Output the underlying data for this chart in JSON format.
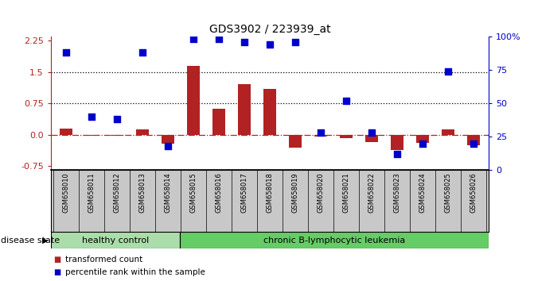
{
  "title": "GDS3902 / 223939_at",
  "samples": [
    "GSM658010",
    "GSM658011",
    "GSM658012",
    "GSM658013",
    "GSM658014",
    "GSM658015",
    "GSM658016",
    "GSM658017",
    "GSM658018",
    "GSM658019",
    "GSM658020",
    "GSM658021",
    "GSM658022",
    "GSM658023",
    "GSM658024",
    "GSM658025",
    "GSM658026"
  ],
  "transformed_count": [
    0.15,
    -0.02,
    -0.02,
    0.12,
    -0.22,
    1.65,
    0.62,
    1.2,
    1.1,
    -0.32,
    -0.05,
    -0.08,
    -0.18,
    -0.38,
    -0.2,
    0.12,
    -0.25
  ],
  "percentile_rank": [
    88,
    40,
    38,
    88,
    18,
    98,
    98,
    96,
    94,
    96,
    28,
    52,
    28,
    12,
    20,
    74,
    20
  ],
  "group_labels": [
    "healthy control",
    "chronic B-lymphocytic leukemia"
  ],
  "healthy_count": 5,
  "bar_color": "#b22222",
  "dot_color": "#0000cd",
  "ylim_left": [
    -0.85,
    2.35
  ],
  "ylim_right": [
    0,
    100
  ],
  "yticks_left": [
    -0.75,
    0.0,
    0.75,
    1.5,
    2.25
  ],
  "yticks_right": [
    0,
    25,
    50,
    75,
    100
  ],
  "hlines_dotted": [
    0.75,
    1.5
  ],
  "hline_dashed": 0.0,
  "disease_state_label": "disease state",
  "legend_bar_label": "transformed count",
  "legend_dot_label": "percentile rank within the sample",
  "bg_color": "#ffffff",
  "label_area_color": "#c8c8c8",
  "healthy_color": "#aaddaa",
  "leukemia_color": "#66cc66"
}
